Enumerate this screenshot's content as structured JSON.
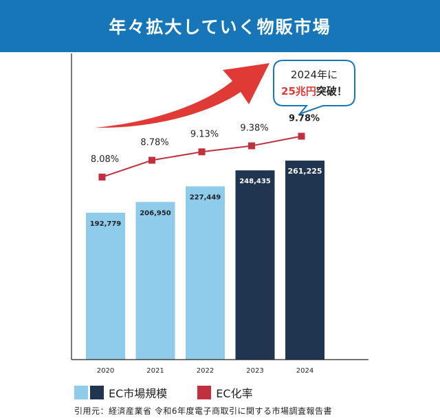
{
  "header": {
    "title": "年々拡大していく物販市場"
  },
  "callout": {
    "line1": "2024年に",
    "highlight": "25兆円",
    "suffix": "突破！"
  },
  "legend": {
    "bar_label": "EC市場規模",
    "line_label": "EC化率"
  },
  "source": "引用元：経済産業省 令和6年度電子商取引に関する市場調査報告書",
  "colors": {
    "header": "#1676b8",
    "bar_light": "#8fcbea",
    "bar_dark": "#1f3550",
    "rate_line": "#c0303f",
    "arrow": "#e03a37"
  },
  "chart_data": {
    "type": "bar",
    "categories": [
      "2020",
      "2021",
      "2022",
      "2023",
      "2024"
    ],
    "series": [
      {
        "name": "EC市場規模",
        "values": [
          192779,
          206950,
          227449,
          248435,
          261225
        ],
        "data_labels": [
          "192,779",
          "206,950",
          "227,449",
          "248,435",
          "261,225"
        ]
      },
      {
        "name": "EC化率",
        "type": "line",
        "values": [
          8.08,
          8.78,
          9.13,
          9.38,
          9.78
        ],
        "data_labels": [
          "8.08%",
          "8.78%",
          "9.13%",
          "9.38%",
          "9.78%"
        ]
      }
    ],
    "grid": false,
    "legend_position": "bottom-left"
  }
}
